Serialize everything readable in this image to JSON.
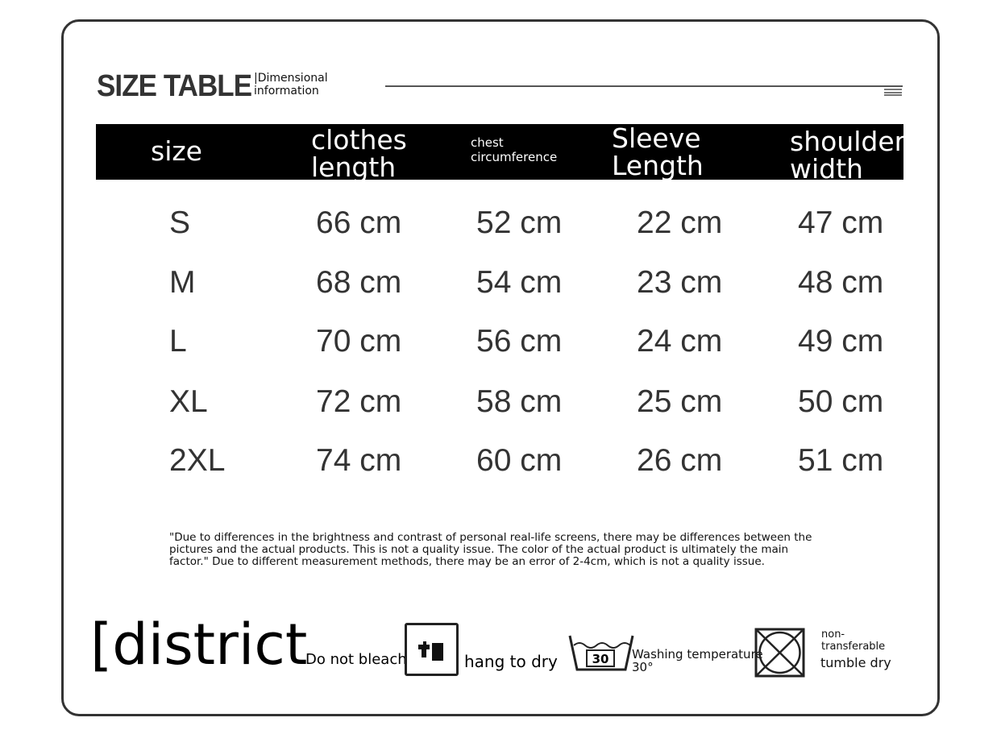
{
  "header": {
    "title": "SIZE TABLE",
    "subtitle_line1": "Dimensional",
    "subtitle_line2": "information"
  },
  "columns": [
    {
      "line1": "size",
      "line2": ""
    },
    {
      "line1": "clothes",
      "line2": "length"
    },
    {
      "line1": "chest",
      "line2": "circumference"
    },
    {
      "line1": "Sleeve",
      "line2": "Length"
    },
    {
      "line1": "shoulder",
      "line2": "width"
    }
  ],
  "rows": [
    [
      "S",
      "66 cm",
      "52 cm",
      "22 cm",
      "47 cm"
    ],
    [
      "M",
      "68 cm",
      "54 cm",
      "23 cm",
      "48 cm"
    ],
    [
      "L",
      "70 cm",
      "56 cm",
      "24 cm",
      "49 cm"
    ],
    [
      "XL",
      "72 cm",
      "58 cm",
      "25 cm",
      "50 cm"
    ],
    [
      "2XL",
      "74 cm",
      "60 cm",
      "26 cm",
      "51 cm"
    ]
  ],
  "note": "\"Due to differences in the brightness and contrast of personal real-life screens, there may be differences between the pictures and the actual products. This is not a quality issue. The color of the actual product is ultimately the main factor.\" Due to different measurement methods, there may be an error of 2-4cm, which is not a quality issue.",
  "care": {
    "district": "[district",
    "no_bleach": "Do not bleach",
    "hang_dry": "hang to dry",
    "wash_number": "30",
    "wash_line1": "Washing temperature",
    "wash_line2": "30°",
    "tumble_line1": "non-",
    "tumble_line2": "transferable",
    "tumble_line3": "tumble dry"
  }
}
